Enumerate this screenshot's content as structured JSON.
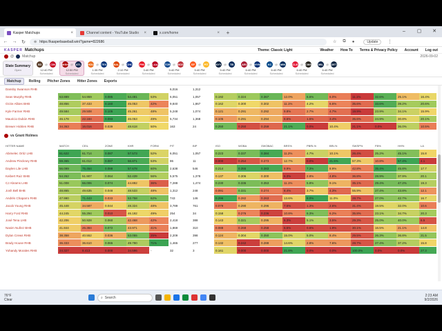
{
  "browser": {
    "tabs": [
      {
        "title": "Kasper Matchups",
        "active": true,
        "color": "#7b4fc0"
      },
      {
        "title": "Channel content - YouTube Studio",
        "active": false,
        "color": "#e53935"
      },
      {
        "title": "x.com/home",
        "active": false,
        "color": "#111111"
      }
    ],
    "url": "https://kasperbaseball.win/?game=822686",
    "update": "Update"
  },
  "app": {
    "brand": "KASPER",
    "title": "Matchups",
    "theme": "Theme: Classic Light",
    "nav": [
      "Weather",
      "How To",
      "Terms & Privacy Policy",
      "Account",
      "Log out"
    ],
    "crumb": "Matchup",
    "date": "2026-09-02"
  },
  "slate": {
    "title": "Slate Summary",
    "sub": "Open"
  },
  "games": [
    {
      "away": "SD",
      "home": "CIN",
      "ac": "#5a3e2b",
      "hc": "#c6011f",
      "time": "12:40 PM",
      "status": "Scheduled",
      "sel": false
    },
    {
      "away": "WSH",
      "home": "ATL",
      "ac": "#ab0003",
      "hc": "#13274f",
      "time": "12:50 PM",
      "status": "Scheduled",
      "sel": true
    },
    {
      "away": "HOU",
      "home": "TEX",
      "ac": "#eb6e1f",
      "hc": "#003278",
      "time": "1:35 PM",
      "status": "Scheduled",
      "sel": false
    },
    {
      "away": "BAL",
      "home": "CHC",
      "ac": "#df4601",
      "hc": "#0e3386",
      "time": "2:10 PM",
      "status": "Scheduled",
      "sel": false
    },
    {
      "away": "PHI",
      "home": "LAA",
      "ac": "#e81828",
      "hc": "#ba0021",
      "time": "3:40 PM",
      "status": "Scheduled",
      "sel": false
    },
    {
      "away": "TOR",
      "home": "BOS",
      "ac": "#134a8e",
      "hc": "#bd3039",
      "time": "5:40 PM",
      "status": "Scheduled",
      "sel": false
    },
    {
      "away": "SF",
      "home": "PIT",
      "ac": "#fd5a1e",
      "hc": "#fdb827",
      "time": "5:40 PM",
      "status": "Scheduled",
      "sel": false
    },
    {
      "away": "NYY",
      "home": "TB",
      "ac": "#0c2340",
      "hc": "#092c5c",
      "time": "5:40 PM",
      "status": "Scheduled",
      "sel": false
    },
    {
      "away": "ARI",
      "home": "NYM",
      "ac": "#a71930",
      "hc": "#002d72",
      "time": "6:40 PM",
      "status": "Scheduled",
      "sel": false
    },
    {
      "away": "KC",
      "home": "MIN",
      "ac": "#004687",
      "hc": "#002b5c",
      "time": "6:40 PM",
      "status": "Scheduled",
      "sel": false
    },
    {
      "away": "CLE",
      "home": "CWS",
      "ac": "#e31937",
      "hc": "#27251f",
      "time": "6:40 PM",
      "status": "Scheduled",
      "sel": false
    },
    {
      "away": "MIL",
      "home": "DET",
      "ac": "#12284b",
      "hc": "#0c2340",
      "time": "6:40 PM",
      "status": "Scheduled",
      "sel": false
    }
  ],
  "subtabs": [
    "Matchup",
    "Rolling",
    "Pitcher Zones",
    "Hitter Zones",
    "Exports"
  ],
  "top_rows": [
    {
      "name": "Dansby Swanson RHB",
      "cells": [
        "",
        "",
        "",
        "",
        "",
        "6,016",
        "1,312",
        "",
        "",
        "",
        "",
        "",
        "",
        "",
        "",
        "",
        ""
      ]
    },
    {
      "name": "Sean Murphy RHB",
      "cells": [
        "53.889",
        "54.959",
        "0.085",
        "54.481",
        "53%",
        "6,051",
        "1,057",
        "0.192",
        "0.324",
        "0.367",
        "12.0%",
        "6.6%",
        "6.0%",
        "11.1%",
        "32.6%",
        "25.1%",
        "16.4%"
      ]
    },
    {
      "name": "Ozzie Albies BHB",
      "cells": [
        "48.856",
        "37.433",
        "0.160",
        "45.053",
        "42%",
        "9,840",
        "1,867",
        "0.162",
        "0.300",
        "0.302",
        "11.1%",
        "4.2%",
        "6.6%",
        "35.6%",
        "33.6%",
        "39.2%",
        "20.6%"
      ]
    },
    {
      "name": "Kyle Farmer RHB",
      "cells": [
        "49.584",
        "29.508",
        "0.105",
        "45.261",
        "48%",
        "5,248",
        "1,074",
        "0.121",
        "0.291",
        "0.292",
        "9.8%",
        "2.7%",
        "4.7%",
        "19.9%",
        "23.9%",
        "34.1%",
        "15.9%"
      ]
    },
    {
      "name": "Mauricio Dubón RHB",
      "cells": [
        "46.178",
        "22.184",
        "0.093",
        "46.053",
        "49%",
        "5,734",
        "1,368",
        "0.105",
        "0.291",
        "0.294",
        "8.6%",
        "1.5%",
        "3.4%",
        "35.6%",
        "24.9%",
        "30.8%",
        "20.1%"
      ]
    },
    {
      "name": "Brewer Hicklen RHB",
      "cells": [
        "34.363",
        "16.016",
        "0.039",
        "48.618",
        "50%",
        "163",
        "24",
        "0.250",
        "0.250",
        "0.259",
        "21.1%",
        "0.0%",
        "10.4%",
        "21.1%",
        "0.0%",
        "36.0%",
        "10.5%"
      ]
    }
  ],
  "section2_title": "vs Grant Holmes",
  "headers": [
    "HITTER NAME",
    "MATCH",
    "CEIL",
    "ZONE",
    "KHR",
    "FORM",
    "PIT",
    "BIP",
    "ISO",
    "WOBA",
    "XWOBAC",
    "BRS%",
    "PBRL%",
    "BRL%",
    "SWSP%",
    "FB%",
    "HH%",
    "LA"
  ],
  "rows": [
    {
      "name": "Abimelec Ortiz LHB",
      "cells": [
        "61.622",
        "61.714",
        "0.087",
        "57.573",
        "52%",
        "6,051",
        "1,057",
        "0.223",
        "0.337",
        "0.384",
        "11.2%",
        "4.7%",
        "10.1%",
        "26.4%",
        "25.2%",
        "45.1%",
        "15.8"
      ]
    },
    {
      "name": "Andrew Pinckney RHB",
      "cells": [
        "59.365",
        "61.012",
        "0.087",
        "56.871",
        "53%",
        "86",
        "11",
        "0.000",
        "0.254",
        "0.273",
        "12.7%",
        "0.0%",
        "21.5%",
        "57.3%",
        "10.8%",
        "57.4%",
        "4.1"
      ]
    },
    {
      "name": "Daylen Lile LHB",
      "cells": [
        "56.099",
        "75.464",
        "0.088",
        "57.678",
        "60%",
        "2,638",
        "546",
        "0.214",
        "0.355",
        "0.383",
        "9.9%",
        "7.3%",
        "8.9%",
        "42.8%",
        "35.4%",
        "45.8%",
        "17.7"
      ]
    },
    {
      "name": "Keibert Ruiz BHB",
      "cells": [
        "54.262",
        "51.907",
        "0.064",
        "52.439",
        "56%",
        "5,575",
        "1,378",
        "0.137",
        "0.306",
        "0.300",
        "6.3%",
        "2.8%",
        "4.8%",
        "36.8%",
        "28.9%",
        "37.9%",
        "20.1"
      ]
    },
    {
      "name": "CJ Abrams LHB",
      "cells": [
        "51.008",
        "66.006",
        "0.074",
        "44.892",
        "36%",
        "7,288",
        "1,474",
        "0.230",
        "0.336",
        "0.353",
        "11.1%",
        "5.8%",
        "9.1%",
        "35.1%",
        "29.4%",
        "47.2%",
        "19.3"
      ]
    },
    {
      "name": "Josh Bell BHB",
      "cells": [
        "48.865",
        "49.635",
        "0.048",
        "48.533",
        "48%",
        "1,312",
        "248",
        "0.091",
        "0.331",
        "0.274",
        "8.4%",
        "3.7%",
        "4.3%",
        "55.9%",
        "27.4%",
        "43.8%",
        "12.1"
      ]
    },
    {
      "name": "Andrés Chaparro RHB",
      "cells": [
        "47.990",
        "71.443",
        "0.033",
        "53.758",
        "62%",
        "743",
        "146",
        "0.296",
        "0.282",
        "0.263",
        "13.6%",
        "8.0%",
        "11.0%",
        "28.7%",
        "27.0%",
        "42.7%",
        "16.7"
      ]
    },
    {
      "name": "Jacob Young RHB",
      "cells": [
        "45.448",
        "34.587",
        "0.044",
        "48.324",
        "48%",
        "3,789",
        "761",
        "0.079",
        "0.290",
        "0.296",
        "7.5%",
        "1.3%",
        "2.6%",
        "31.4%",
        "19.5%",
        "32.0%",
        "10.6"
      ]
    },
    {
      "name": "Harry Ford RHB",
      "cells": [
        "44.245",
        "55.294",
        "0.010",
        "46.192",
        "49%",
        "254",
        "34",
        "0.158",
        "0.276",
        "0.236",
        "10.8%",
        "6.3%",
        "6.2%",
        "35.8%",
        "23.1%",
        "34.7%",
        "20.3"
      ]
    },
    {
      "name": "José Tena LHB",
      "cells": [
        "42.206",
        "50.928",
        "0.060",
        "42.468",
        "42%",
        "2,418",
        "388",
        "0.143",
        "0.321",
        "0.295",
        "6.3%",
        "5.1%",
        "3.5%",
        "29.3%",
        "25.0%",
        "40.0%",
        "6.5"
      ]
    },
    {
      "name": "Nasim Nuñez BHB",
      "cells": [
        "41.844",
        "26.384",
        "0.072",
        "43.971",
        "41%",
        "1,869",
        "310",
        "0.088",
        "0.268",
        "0.258",
        "6.5%",
        "0.6%",
        "1.9%",
        "30.1%",
        "16.5%",
        "21.1%",
        "14.8"
      ]
    },
    {
      "name": "Dylan Crews RHB",
      "cells": [
        "38.358",
        "40.552",
        "0.036",
        "53.055",
        "25%",
        "2,209",
        "398",
        "0.124",
        "0.304",
        "0.350",
        "15.0%",
        "5.0%",
        "8.4%",
        "29.5%",
        "26.3%",
        "36.8%",
        "21.5"
      ]
    },
    {
      "name": "Brady House RHB",
      "cells": [
        "36.333",
        "36.610",
        "0.065",
        "49.790",
        "71%",
        "1,465",
        "277",
        "0.132",
        "0.242",
        "0.288",
        "14.6%",
        "2.8%",
        "7.6%",
        "28.7%",
        "27.4%",
        "37.2%",
        "15.8"
      ]
    },
    {
      "name": "Yohandy Morales RHB",
      "cells": [
        "24.327",
        "8.413",
        "0.000",
        "34.596",
        "-",
        "32",
        "3",
        "0.161",
        "0.000",
        "0.000",
        "21.8%",
        "0.0%",
        "0.0%",
        "100.0%",
        "0.0%",
        "0.0%",
        "27.3"
      ]
    }
  ],
  "taskbar": {
    "temp": "76°F",
    "cond": "Clear",
    "search": "Search",
    "time": "2:23 AM",
    "date": "9/2/2026"
  }
}
